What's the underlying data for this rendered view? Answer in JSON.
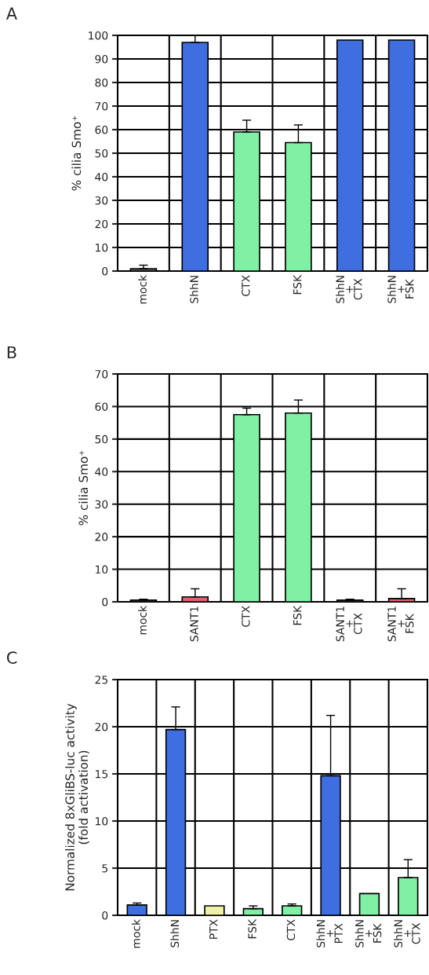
{
  "chart_data": [
    {
      "type": "bar",
      "title": "A",
      "ylabel": "% cilia Smo⁺",
      "categories": [
        "mock",
        "ShhN",
        "CTX",
        "FSK",
        "ShhN\n+\nCTX",
        "ShhN\n+\nFSK"
      ],
      "values": [
        1,
        97,
        59,
        54.5,
        98,
        98
      ],
      "errors": [
        [
          1,
          2.5
        ],
        [
          97,
          100
        ],
        [
          59,
          64
        ],
        [
          54.5,
          62
        ],
        null,
        null
      ],
      "colors": [
        "#606060",
        "#3f6ee0",
        "#80f0a4",
        "#80f0a4",
        "#3f6ee0",
        "#3f6ee0"
      ],
      "ylim": [
        0,
        100
      ],
      "yticks": [
        0,
        10,
        20,
        30,
        40,
        50,
        60,
        70,
        80,
        90,
        100
      ],
      "grid": true
    },
    {
      "type": "bar",
      "title": "B",
      "ylabel": "% cilia Smo⁺",
      "categories": [
        "mock",
        "SANT1",
        "CTX",
        "FSK",
        "SANT1\n+\nCTX",
        "SANT1\n+\nFSK"
      ],
      "values": [
        0.5,
        1.5,
        57.5,
        58,
        0.5,
        1
      ],
      "errors": [
        [
          0.5,
          0.8
        ],
        [
          1.5,
          4
        ],
        [
          57.5,
          59.5
        ],
        [
          58,
          62
        ],
        [
          0.5,
          0.8
        ],
        [
          1,
          4
        ]
      ],
      "colors": [
        "#606060",
        "#e06070",
        "#80f0a4",
        "#80f0a4",
        "#606060",
        "#e06070"
      ],
      "ylim": [
        0,
        70
      ],
      "yticks": [
        0,
        10,
        20,
        30,
        40,
        50,
        60,
        70
      ],
      "grid": true
    },
    {
      "type": "bar",
      "title": "C",
      "ylabel": "Normalized 8xGliBS-luc activity\n(fold activation)",
      "categories": [
        "mock",
        "ShhN",
        "PTX",
        "FSK",
        "CTX",
        "ShhN\n+\nPTX",
        "ShhN\n+\nFSK",
        "ShhN\n+\nCTX"
      ],
      "values": [
        1.1,
        19.7,
        1.0,
        0.7,
        1.0,
        14.8,
        2.3,
        4.0
      ],
      "errors": [
        [
          1.1,
          1.3
        ],
        [
          19.7,
          22.1
        ],
        null,
        [
          0.7,
          1.0
        ],
        [
          1.0,
          1.2
        ],
        [
          14.8,
          21.2
        ],
        null,
        [
          4.0,
          5.9
        ]
      ],
      "colors": [
        "#3f6ee0",
        "#3f6ee0",
        "#f0f0a8",
        "#80f0a4",
        "#80f0a4",
        "#3f6ee0",
        "#80f0a4",
        "#80f0a4"
      ],
      "ylim": [
        0,
        25
      ],
      "yticks": [
        0,
        5,
        10,
        15,
        20,
        25
      ],
      "grid": true
    }
  ]
}
